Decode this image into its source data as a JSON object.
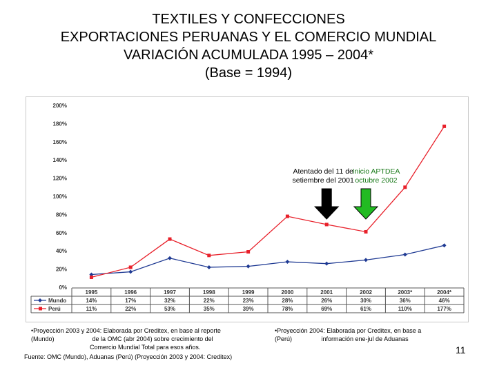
{
  "title": {
    "line1": "TEXTILES Y CONFECCIONES",
    "line2": "EXPORTACIONES PERUANAS Y EL COMERCIO MUNDIAL",
    "line3": "VARIACIÓN ACUMULADA 1995 – 2004*",
    "line4": "(Base = 1994)"
  },
  "chart_data": {
    "type": "line",
    "categories": [
      "1995",
      "1996",
      "1997",
      "1998",
      "1999",
      "2000",
      "2001",
      "2002",
      "2003*",
      "2004*"
    ],
    "series": [
      {
        "name": "Mundo",
        "values": [
          14,
          17,
          32,
          22,
          23,
          28,
          26,
          30,
          36,
          46
        ],
        "labels": [
          "14%",
          "17%",
          "32%",
          "22%",
          "23%",
          "28%",
          "26%",
          "30%",
          "36%",
          "46%"
        ],
        "color": "#1f3a93",
        "marker": "diamond"
      },
      {
        "name": "Perú",
        "values": [
          11,
          22,
          53,
          35,
          39,
          78,
          69,
          61,
          110,
          177
        ],
        "labels": [
          "11%",
          "22%",
          "53%",
          "35%",
          "39%",
          "78%",
          "69%",
          "61%",
          "110%",
          "177%"
        ],
        "color": "#e8202a",
        "marker": "square"
      }
    ],
    "ylim": [
      0,
      200
    ],
    "yticks": [
      "0%",
      "20%",
      "40%",
      "60%",
      "80%",
      "100%",
      "120%",
      "140%",
      "160%",
      "180%",
      "200%"
    ],
    "grid": false,
    "legend": "data-table",
    "annotations": [
      {
        "text1": "Atentado del 11 de",
        "text2": "setiembre del 2001",
        "arrow_color": "#000000",
        "x": "2001"
      },
      {
        "text1": "Inicio APTDEA",
        "text2": "octubre 2002",
        "text_color": "#1a7a1a",
        "arrow_color": "#22bb22",
        "x": "2002"
      }
    ]
  },
  "footnotes": {
    "mundo": "•Proyección 2003 y 2004: Elaborada por Creditex, en base al reporte\n(Mundo)                      de la OMC (abr 2004) sobre crecimiento del\n                                  Comercio Mundial Total para esos años.",
    "peru": "•Proyección 2004: Elaborada por Creditex, en base a\n(Perú)                 información ene-jul de Aduanas",
    "fuente": "Fuente: OMC (Mundo), Aduanas (Perú) (Proyección 2003 y 2004: Creditex)"
  },
  "page_number": "11"
}
